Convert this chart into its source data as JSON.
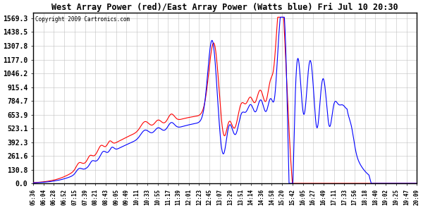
{
  "title": "West Array Power (red)/East Array Power (Watts blue) Fri Jul 10 20:30",
  "copyright": "Copyright 2009 Cartronics.com",
  "background_color": "#ffffff",
  "plot_bg_color": "#ffffff",
  "grid_color": "#c0c0c0",
  "red_color": "#ff0000",
  "blue_color": "#0000ff",
  "yticks": [
    0.0,
    130.8,
    261.6,
    392.3,
    523.1,
    653.9,
    784.7,
    915.4,
    1046.2,
    1177.0,
    1307.8,
    1438.5,
    1569.3
  ],
  "ymax": 1620,
  "xtick_labels": [
    "05:36",
    "06:04",
    "06:28",
    "06:52",
    "07:15",
    "07:39",
    "08:21",
    "08:43",
    "09:05",
    "09:49",
    "10:11",
    "10:33",
    "10:55",
    "11:17",
    "11:39",
    "12:01",
    "12:23",
    "12:45",
    "13:07",
    "13:29",
    "13:51",
    "14:14",
    "14:36",
    "14:58",
    "15:20",
    "15:42",
    "16:05",
    "16:27",
    "16:49",
    "17:11",
    "17:33",
    "17:56",
    "18:18",
    "18:40",
    "19:02",
    "19:25",
    "19:47",
    "20:09"
  ]
}
